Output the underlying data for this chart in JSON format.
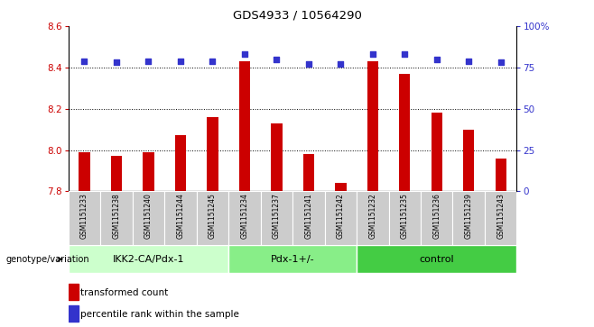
{
  "title": "GDS4933 / 10564290",
  "samples": [
    "GSM1151233",
    "GSM1151238",
    "GSM1151240",
    "GSM1151244",
    "GSM1151245",
    "GSM1151234",
    "GSM1151237",
    "GSM1151241",
    "GSM1151242",
    "GSM1151232",
    "GSM1151235",
    "GSM1151236",
    "GSM1151239",
    "GSM1151243"
  ],
  "bar_values": [
    7.99,
    7.97,
    7.99,
    8.07,
    8.16,
    8.43,
    8.13,
    7.98,
    7.84,
    8.43,
    8.37,
    8.18,
    8.1,
    7.96
  ],
  "percentile_values": [
    79,
    78,
    79,
    79,
    79,
    83,
    80,
    77,
    77,
    83,
    83,
    80,
    79,
    78
  ],
  "bar_color": "#cc0000",
  "dot_color": "#3333cc",
  "ylim_left": [
    7.8,
    8.6
  ],
  "ylim_right": [
    0,
    100
  ],
  "yticks_left": [
    7.8,
    8.0,
    8.2,
    8.4,
    8.6
  ],
  "yticks_right": [
    0,
    25,
    50,
    75,
    100
  ],
  "groups": [
    {
      "label": "IKK2-CA/Pdx-1",
      "start": 0,
      "end": 5,
      "color": "#ccffcc"
    },
    {
      "label": "Pdx-1+/-",
      "start": 5,
      "end": 9,
      "color": "#88ee88"
    },
    {
      "label": "control",
      "start": 9,
      "end": 14,
      "color": "#44cc44"
    }
  ],
  "group_label_prefix": "genotype/variation",
  "legend_bar_label": "transformed count",
  "legend_dot_label": "percentile rank within the sample",
  "tick_label_color_left": "#cc0000",
  "tick_label_color_right": "#3333cc",
  "sample_box_color": "#cccccc",
  "sample_box_edge": "#aaaaaa"
}
